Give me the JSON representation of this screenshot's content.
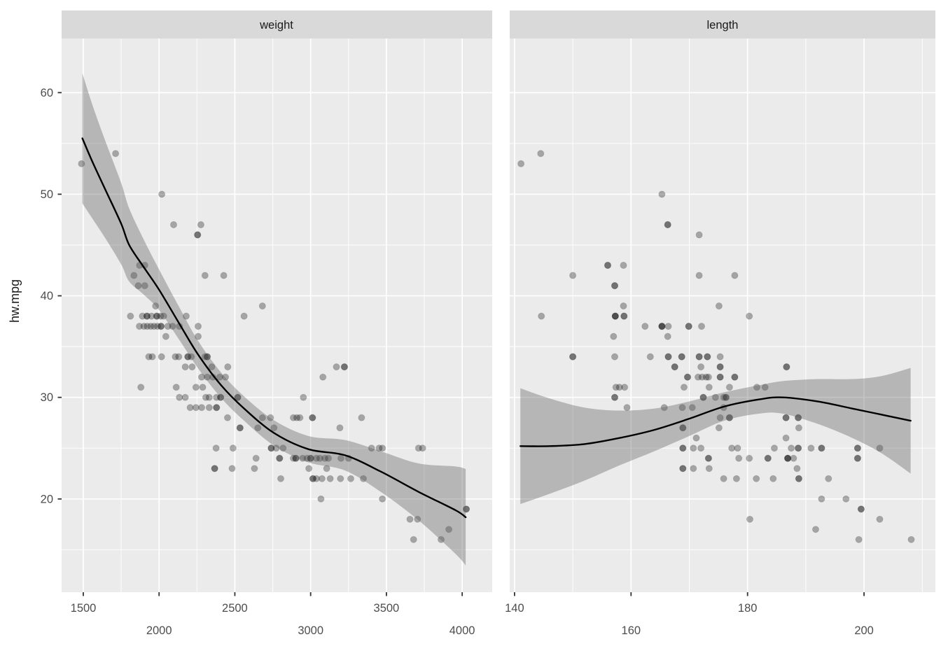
{
  "y_axis": {
    "title": "hw.mpg",
    "major_ticks": [
      60,
      50,
      40,
      30,
      20
    ],
    "minor_ticks": [
      55,
      45,
      35,
      25,
      15
    ],
    "ylim": [
      10.82,
      65.33
    ]
  },
  "style": {
    "background": "#ffffff",
    "panel_bg": "#ebebeb",
    "strip_bg": "#d9d9d9",
    "grid_color": "#ffffff",
    "point_color": "#000000",
    "point_opacity": 0.3,
    "smooth_line_color": "#000000",
    "ci_band_color": "#585858",
    "ci_band_opacity": 0.36,
    "tick_label_color": "#4d4d4d",
    "text_color": "#1a1a1a",
    "tick_mark_color": "#333333"
  },
  "chart_data": [
    {
      "type": "scatter",
      "title": "weight",
      "xlabel": "weight",
      "ylabel": "hw.mpg",
      "legend": "none",
      "grid": "on",
      "xlim": [
        1357,
        4198
      ],
      "x_major_ticks": [
        1500,
        2000,
        2500,
        3000,
        3500,
        4000
      ],
      "x_minor_ticks": [
        1750,
        2250,
        2750,
        3250,
        3750
      ],
      "x_tick_rows": [
        [
          1500,
          2500,
          3500
        ],
        [
          2000,
          3000,
          4000
        ]
      ],
      "points": [
        [
          1488,
          53
        ],
        [
          1713,
          54
        ],
        [
          2018,
          50
        ],
        [
          2096,
          47
        ],
        [
          2276,
          47
        ],
        [
          2254,
          46
        ],
        [
          2254,
          46
        ],
        [
          1871,
          43
        ],
        [
          1906,
          43
        ],
        [
          1834,
          42
        ],
        [
          2303,
          42
        ],
        [
          2427,
          42
        ],
        [
          1863,
          41
        ],
        [
          1906,
          41
        ],
        [
          1977,
          39
        ],
        [
          2682,
          39
        ],
        [
          1811,
          38
        ],
        [
          1890,
          38
        ],
        [
          1920,
          38
        ],
        [
          1920,
          38
        ],
        [
          1950,
          38
        ],
        [
          1985,
          38
        ],
        [
          1985,
          38
        ],
        [
          2010,
          38
        ],
        [
          2030,
          38
        ],
        [
          2179,
          38
        ],
        [
          2561,
          38
        ],
        [
          1870,
          37
        ],
        [
          1900,
          37
        ],
        [
          1922,
          37
        ],
        [
          1945,
          37
        ],
        [
          1967,
          37
        ],
        [
          1990,
          37
        ],
        [
          2013,
          37
        ],
        [
          2013,
          37
        ],
        [
          2058,
          37
        ],
        [
          2089,
          37
        ],
        [
          2134,
          37
        ],
        [
          2258,
          37
        ],
        [
          2045,
          36
        ],
        [
          2258,
          36
        ],
        [
          1932,
          34
        ],
        [
          1955,
          34
        ],
        [
          2016,
          34
        ],
        [
          2107,
          34
        ],
        [
          2130,
          34
        ],
        [
          2190,
          34
        ],
        [
          2190,
          34
        ],
        [
          2213,
          34
        ],
        [
          2303,
          34
        ],
        [
          2318,
          34
        ],
        [
          2318,
          34
        ],
        [
          2173,
          33
        ],
        [
          2218,
          33
        ],
        [
          2348,
          33
        ],
        [
          2453,
          33
        ],
        [
          3170,
          33
        ],
        [
          3223,
          33
        ],
        [
          3223,
          33
        ],
        [
          2281,
          32
        ],
        [
          2318,
          32
        ],
        [
          2355,
          32
        ],
        [
          2400,
          32
        ],
        [
          2438,
          32
        ],
        [
          3081,
          32
        ],
        [
          1880,
          31
        ],
        [
          2113,
          31
        ],
        [
          2243,
          31
        ],
        [
          2288,
          31
        ],
        [
          2134,
          30
        ],
        [
          2173,
          30
        ],
        [
          2308,
          30
        ],
        [
          2331,
          30
        ],
        [
          2379,
          30
        ],
        [
          2406,
          30
        ],
        [
          2406,
          30
        ],
        [
          2519,
          30
        ],
        [
          2519,
          30
        ],
        [
          2952,
          30
        ],
        [
          2205,
          29
        ],
        [
          2243,
          29
        ],
        [
          2281,
          29
        ],
        [
          2331,
          29
        ],
        [
          2379,
          29
        ],
        [
          2379,
          29
        ],
        [
          2452,
          28
        ],
        [
          2682,
          28
        ],
        [
          2735,
          28
        ],
        [
          2886,
          28
        ],
        [
          2909,
          28
        ],
        [
          2929,
          28
        ],
        [
          3012,
          28
        ],
        [
          3012,
          28
        ],
        [
          3336,
          28
        ],
        [
          2534,
          27
        ],
        [
          2534,
          27
        ],
        [
          2652,
          27
        ],
        [
          2758,
          27
        ],
        [
          3193,
          27
        ],
        [
          2376,
          25
        ],
        [
          2488,
          25
        ],
        [
          2740,
          25
        ],
        [
          2740,
          25
        ],
        [
          2773,
          25
        ],
        [
          2818,
          25
        ],
        [
          3402,
          25
        ],
        [
          3452,
          25
        ],
        [
          3473,
          25
        ],
        [
          3712,
          25
        ],
        [
          3739,
          25
        ],
        [
          2640,
          24
        ],
        [
          2795,
          24
        ],
        [
          2795,
          24
        ],
        [
          2886,
          24
        ],
        [
          2902,
          24
        ],
        [
          2902,
          24
        ],
        [
          2947,
          24
        ],
        [
          2977,
          24
        ],
        [
          3000,
          24
        ],
        [
          3000,
          24
        ],
        [
          3038,
          24
        ],
        [
          3061,
          24
        ],
        [
          3094,
          24
        ],
        [
          3117,
          24
        ],
        [
          3200,
          24
        ],
        [
          3250,
          24
        ],
        [
          2367,
          23
        ],
        [
          2367,
          23
        ],
        [
          2482,
          23
        ],
        [
          2629,
          23
        ],
        [
          2988,
          23
        ],
        [
          3106,
          23
        ],
        [
          2803,
          22
        ],
        [
          3015,
          22
        ],
        [
          3015,
          22
        ],
        [
          3038,
          22
        ],
        [
          3075,
          22
        ],
        [
          3129,
          22
        ],
        [
          3197,
          22
        ],
        [
          3265,
          22
        ],
        [
          3348,
          22
        ],
        [
          3068,
          20
        ],
        [
          3473,
          20
        ],
        [
          4027,
          19
        ],
        [
          4027,
          19
        ],
        [
          3655,
          18
        ],
        [
          3705,
          18
        ],
        [
          3912,
          17
        ],
        [
          3679,
          16
        ],
        [
          3861,
          16
        ]
      ],
      "smooth": {
        "x": [
          1494,
          1560,
          1644,
          1750,
          1803,
          1900,
          2000,
          2136,
          2258,
          2409,
          2561,
          2758,
          2985,
          3227,
          3462,
          3712,
          3955,
          4023
        ],
        "y": [
          55.5,
          53.2,
          50.5,
          47.1,
          45.0,
          42.8,
          40.6,
          37.2,
          34.2,
          31.2,
          28.9,
          26.5,
          24.9,
          24.3,
          22.7,
          20.7,
          18.9,
          18.2
        ],
        "ci": [
          6.4,
          5.6,
          4.8,
          4.0,
          3.6,
          2.7,
          2.0,
          1.6,
          1.35,
          1.25,
          1.2,
          1.25,
          1.3,
          1.5,
          2.0,
          2.8,
          4.3,
          4.75
        ]
      }
    },
    {
      "type": "scatter",
      "title": "length",
      "xlabel": "length",
      "ylabel": "hw.mpg",
      "legend": "none",
      "grid": "on",
      "xlim": [
        139.17,
        212.25
      ],
      "x_major_ticks": [
        140,
        160,
        180,
        200
      ],
      "x_minor_ticks": [
        150,
        170,
        190,
        210
      ],
      "x_tick_rows": [
        [
          140,
          180
        ],
        [
          160,
          200
        ]
      ],
      "points": [
        [
          144.5,
          54
        ],
        [
          141.1,
          53
        ],
        [
          165.3,
          50
        ],
        [
          166.3,
          47
        ],
        [
          166.3,
          47
        ],
        [
          171.7,
          46
        ],
        [
          156,
          43
        ],
        [
          156,
          43
        ],
        [
          158.7,
          43
        ],
        [
          150,
          42
        ],
        [
          171.7,
          42
        ],
        [
          177.8,
          42
        ],
        [
          157.2,
          41
        ],
        [
          157.2,
          41
        ],
        [
          158.7,
          39
        ],
        [
          175.1,
          39
        ],
        [
          144.6,
          38
        ],
        [
          157.3,
          38
        ],
        [
          157.3,
          38
        ],
        [
          157.3,
          38
        ],
        [
          158.8,
          38
        ],
        [
          158.8,
          38
        ],
        [
          180.3,
          38
        ],
        [
          162.4,
          37
        ],
        [
          165.3,
          37
        ],
        [
          165.3,
          37
        ],
        [
          165.3,
          37
        ],
        [
          166.4,
          37
        ],
        [
          169.9,
          37
        ],
        [
          169.9,
          37
        ],
        [
          172.1,
          37
        ],
        [
          157,
          36
        ],
        [
          166.3,
          36
        ],
        [
          150,
          34
        ],
        [
          150,
          34
        ],
        [
          157.2,
          34
        ],
        [
          163.3,
          34
        ],
        [
          166.4,
          34
        ],
        [
          166.4,
          34
        ],
        [
          168.7,
          34
        ],
        [
          168.7,
          34
        ],
        [
          171.7,
          34
        ],
        [
          171.7,
          34
        ],
        [
          173.1,
          34
        ],
        [
          173.1,
          34
        ],
        [
          175.3,
          34
        ],
        [
          167.5,
          33
        ],
        [
          167.5,
          33
        ],
        [
          172,
          33
        ],
        [
          175.3,
          33
        ],
        [
          175.3,
          33
        ],
        [
          186.7,
          33
        ],
        [
          186.7,
          33
        ],
        [
          169.7,
          32
        ],
        [
          169.7,
          32
        ],
        [
          171.5,
          32
        ],
        [
          172.2,
          32
        ],
        [
          172.9,
          32
        ],
        [
          173.3,
          32
        ],
        [
          175.3,
          32
        ],
        [
          175.3,
          32
        ],
        [
          177.8,
          32
        ],
        [
          177.8,
          32
        ],
        [
          157.4,
          31
        ],
        [
          158,
          31
        ],
        [
          158.9,
          31
        ],
        [
          169.1,
          31
        ],
        [
          173.4,
          31
        ],
        [
          176.9,
          31
        ],
        [
          181.6,
          31
        ],
        [
          183,
          31
        ],
        [
          157.2,
          30
        ],
        [
          157.2,
          30
        ],
        [
          172.4,
          30
        ],
        [
          172.4,
          30
        ],
        [
          174.5,
          30
        ],
        [
          175.9,
          30
        ],
        [
          176.3,
          30
        ],
        [
          176.3,
          30
        ],
        [
          159.3,
          29
        ],
        [
          165.7,
          29
        ],
        [
          168.8,
          29
        ],
        [
          170.5,
          29
        ],
        [
          175.9,
          29
        ],
        [
          175.3,
          28
        ],
        [
          176.9,
          28
        ],
        [
          176.9,
          28
        ],
        [
          186.6,
          28
        ],
        [
          186.6,
          28
        ],
        [
          188.7,
          28
        ],
        [
          188.7,
          28
        ],
        [
          168.9,
          27
        ],
        [
          168.9,
          27
        ],
        [
          175.1,
          27
        ],
        [
          188.8,
          27
        ],
        [
          171.2,
          26
        ],
        [
          186.6,
          26
        ],
        [
          168.9,
          25
        ],
        [
          168.9,
          25
        ],
        [
          170.7,
          25
        ],
        [
          172,
          25
        ],
        [
          177.3,
          25
        ],
        [
          178.3,
          25
        ],
        [
          184.6,
          25
        ],
        [
          187.5,
          25
        ],
        [
          188.7,
          25
        ],
        [
          188.7,
          25
        ],
        [
          190.9,
          25
        ],
        [
          192.7,
          25
        ],
        [
          192.7,
          25
        ],
        [
          198.9,
          25
        ],
        [
          198.9,
          25
        ],
        [
          202.7,
          25
        ],
        [
          173.3,
          24
        ],
        [
          173.3,
          24
        ],
        [
          178.5,
          24
        ],
        [
          180.3,
          24
        ],
        [
          183.5,
          24
        ],
        [
          183.5,
          24
        ],
        [
          186.9,
          24
        ],
        [
          186.9,
          24
        ],
        [
          186.9,
          24
        ],
        [
          187.9,
          24
        ],
        [
          198.9,
          24
        ],
        [
          198.9,
          24
        ],
        [
          168.9,
          23
        ],
        [
          168.9,
          23
        ],
        [
          170.7,
          23
        ],
        [
          173.4,
          23
        ],
        [
          188.5,
          23
        ],
        [
          175.9,
          22
        ],
        [
          178.1,
          22
        ],
        [
          181.5,
          22
        ],
        [
          184.4,
          22
        ],
        [
          188.8,
          22
        ],
        [
          188.8,
          22
        ],
        [
          193.9,
          22
        ],
        [
          192.7,
          20
        ],
        [
          196.9,
          20
        ],
        [
          199.5,
          19
        ],
        [
          199.5,
          19
        ],
        [
          180.4,
          18
        ],
        [
          202.7,
          18
        ],
        [
          191.7,
          17
        ],
        [
          199.1,
          16
        ],
        [
          208.1,
          16
        ]
      ],
      "smooth": {
        "x": [
          141,
          146,
          152,
          158,
          164,
          170,
          176,
          182,
          186,
          192,
          198,
          203,
          208
        ],
        "y": [
          25.2,
          25.2,
          25.4,
          26.0,
          26.8,
          27.9,
          29.1,
          29.8,
          30.0,
          29.6,
          28.9,
          28.3,
          27.7
        ],
        "ci": [
          5.7,
          4.7,
          3.6,
          2.7,
          2.1,
          1.7,
          1.4,
          1.4,
          1.6,
          2.2,
          2.9,
          3.8,
          5.2
        ]
      }
    }
  ]
}
